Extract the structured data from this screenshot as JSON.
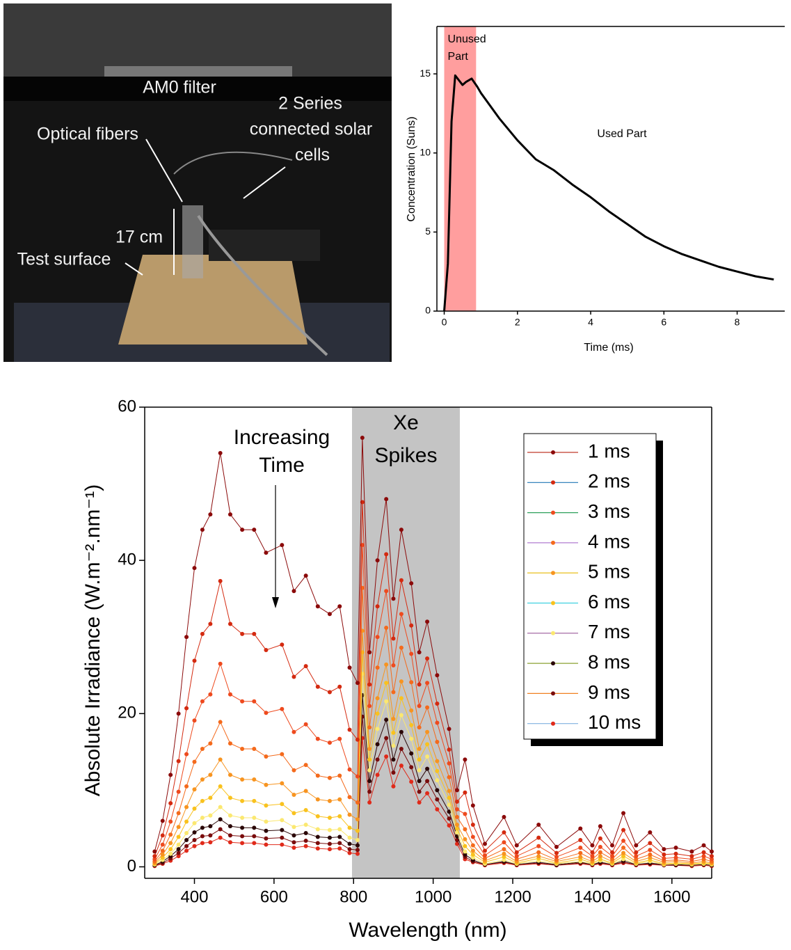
{
  "photo": {
    "labels": [
      [
        "AM0 filter"
      ],
      [
        "2 Series",
        "connected solar",
        "cells"
      ],
      [
        "Optical fibers"
      ],
      [
        "17 cm"
      ],
      [
        "Test surface"
      ]
    ]
  },
  "chart_data": [
    {
      "type": "line",
      "xlabel": "Time (ms)",
      "ylabel": "Concentration (Suns)",
      "x": [
        0,
        0.1,
        0.2,
        0.3,
        0.4,
        0.5,
        0.6,
        0.75,
        0.9,
        1,
        1.5,
        2,
        2.5,
        3,
        3.5,
        4,
        4.5,
        5,
        5.5,
        6,
        6.5,
        7,
        7.5,
        8,
        8.5,
        9
      ],
      "values": [
        0,
        3,
        12,
        14.9,
        14.6,
        14.3,
        14.5,
        14.7,
        14.2,
        13.8,
        12.2,
        10.8,
        9.6,
        8.9,
        8,
        7.2,
        6.3,
        5.5,
        4.7,
        4.1,
        3.6,
        3.2,
        2.8,
        2.5,
        2.2,
        2.0
      ],
      "color": "#000000",
      "xlim": [
        -0.2,
        9.3
      ],
      "ylim": [
        0,
        18
      ],
      "xticks": [
        0,
        2,
        4,
        6,
        8
      ],
      "yticks": [
        0,
        5,
        10,
        15
      ],
      "shaded_regions": [
        {
          "range": [
            0,
            0.87
          ],
          "color": "#ff9e9e",
          "label": [
            "Unused",
            "Part"
          ]
        }
      ],
      "annotations": [
        "Used Part"
      ]
    },
    {
      "type": "line",
      "xlabel": "Wavelength (nm)",
      "ylabel": "Absolute Irradiance (W.m⁻².nm⁻¹)",
      "x": [
        300,
        320,
        340,
        360,
        380,
        400,
        420,
        440,
        465,
        490,
        520,
        550,
        580,
        620,
        650,
        680,
        710,
        740,
        765,
        790,
        810,
        822,
        840,
        860,
        882,
        900,
        920,
        945,
        965,
        985,
        1010,
        1040,
        1060,
        1080,
        1100,
        1130,
        1178,
        1210,
        1265,
        1310,
        1370,
        1400,
        1420,
        1450,
        1478,
        1510,
        1545,
        1580,
        1610,
        1650,
        1680,
        1700
      ],
      "markers": true,
      "legend": "upper right",
      "xlim": [
        275,
        1700
      ],
      "ylim": [
        -1.5,
        60
      ],
      "xticks": [
        400,
        600,
        800,
        1000,
        1200,
        1400,
        1600
      ],
      "yticks": [
        0,
        20,
        40,
        60
      ],
      "shaded_regions": [
        {
          "range": [
            796,
            1067
          ],
          "color": "#c4c4c4",
          "label": [
            "Xe",
            "Spikes"
          ]
        }
      ],
      "annotations": [
        [
          "Increasing",
          "Time"
        ]
      ],
      "series": [
        {
          "name": "1 ms",
          "color": "#8b0a0a",
          "line_color": "#c0392b",
          "values": [
            2,
            6,
            12,
            20,
            30,
            39,
            44,
            46,
            54,
            46,
            44,
            44,
            41,
            42,
            36,
            38,
            34,
            33,
            34,
            26,
            24,
            56,
            28,
            40,
            48,
            35,
            44,
            37,
            28,
            32,
            25,
            18,
            10,
            14,
            8,
            3,
            6.5,
            2.8,
            5.5,
            2.6,
            5,
            2.8,
            5.3,
            2.8,
            7,
            2.8,
            4.5,
            2.3,
            2.5,
            2,
            2.8,
            2
          ]
        },
        {
          "name": "2 ms",
          "color": "#d42a10",
          "line_color": "#1f77b4",
          "values": [
            1.4,
            4.1,
            8.3,
            13.8,
            20.7,
            26.9,
            30.4,
            31.7,
            37.3,
            31.7,
            30.4,
            30.4,
            28.3,
            29,
            24.8,
            26.2,
            23.5,
            22.8,
            23.5,
            17.9,
            16.6,
            47.6,
            23.8,
            34,
            40.8,
            29.8,
            37.4,
            31.5,
            23.8,
            27.2,
            21.3,
            15.3,
            8.5,
            9.7,
            5.5,
            2.1,
            4.5,
            1.9,
            3.8,
            1.8,
            3.5,
            1.9,
            3.7,
            1.9,
            4.8,
            1.9,
            3.1,
            1.6,
            1.7,
            1.4,
            1.9,
            1.4
          ]
        },
        {
          "name": "3 ms",
          "color": "#ee4a1e",
          "line_color": "#2ca05a",
          "values": [
            1,
            2.9,
            5.9,
            9.8,
            14.7,
            19.1,
            21.6,
            22.5,
            26.5,
            22.5,
            21.6,
            21.6,
            20.1,
            20.6,
            17.6,
            18.6,
            16.7,
            16.2,
            16.7,
            12.7,
            11.8,
            42,
            21,
            30,
            36,
            26.3,
            33,
            27.8,
            21,
            24,
            18.8,
            13.5,
            7.5,
            6.9,
            3.9,
            1.5,
            3.2,
            1.4,
            2.7,
            1.3,
            2.5,
            1.4,
            2.6,
            1.4,
            3.4,
            1.4,
            2.2,
            1.1,
            1.2,
            1,
            1.4,
            1
          ]
        },
        {
          "name": "4 ms",
          "color": "#f46a1c",
          "line_color": "#b07cd0",
          "values": [
            0.7,
            2.1,
            4.2,
            7,
            10.5,
            13.7,
            15.4,
            16.1,
            18.9,
            16.1,
            15.4,
            15.4,
            14.4,
            14.7,
            12.6,
            13.3,
            11.9,
            11.6,
            11.9,
            9.1,
            8.4,
            36.4,
            18.2,
            26,
            31.2,
            22.8,
            28.6,
            24.1,
            18.2,
            20.8,
            16.3,
            11.7,
            6.5,
            4.9,
            2.8,
            1.1,
            2.3,
            1,
            1.9,
            0.9,
            1.8,
            1,
            1.9,
            1,
            2.5,
            1,
            1.6,
            0.8,
            0.9,
            0.7,
            1,
            0.7
          ]
        },
        {
          "name": "5 ms",
          "color": "#f79420",
          "line_color": "#e6b800",
          "values": [
            0.5,
            1.6,
            3.1,
            5.2,
            7.8,
            10.1,
            11.4,
            12,
            14,
            12,
            11.4,
            11.4,
            10.7,
            10.9,
            9.4,
            9.9,
            8.8,
            8.6,
            8.8,
            6.8,
            6.2,
            30.8,
            15.4,
            22,
            26.4,
            19.3,
            24.2,
            20.4,
            15.4,
            17.6,
            13.8,
            9.9,
            5.5,
            3.6,
            2.1,
            0.8,
            1.7,
            0.7,
            1.4,
            0.7,
            1.3,
            0.7,
            1.4,
            0.7,
            1.8,
            0.7,
            1.2,
            0.6,
            0.7,
            0.5,
            0.7,
            0.5
          ]
        },
        {
          "name": "6 ms",
          "color": "#f9c21e",
          "line_color": "#3fd0e0",
          "values": [
            0.4,
            1.2,
            2.3,
            3.9,
            5.9,
            7.6,
            8.6,
            9,
            10.5,
            9,
            8.6,
            8.6,
            8,
            8.2,
            7,
            7.4,
            6.6,
            6.4,
            6.6,
            5.1,
            4.7,
            28,
            14,
            20,
            24,
            17.5,
            22,
            18.5,
            14,
            16,
            12.5,
            9,
            5,
            2.7,
            1.6,
            0.6,
            1.3,
            0.5,
            1.1,
            0.5,
            1,
            0.5,
            1,
            0.5,
            1.4,
            0.5,
            0.9,
            0.4,
            0.5,
            0.4,
            0.5,
            0.4
          ]
        },
        {
          "name": "7 ms",
          "color": "#fbe870",
          "line_color": "#9a5a9a",
          "values": [
            0.3,
            0.9,
            1.7,
            2.9,
            4.4,
            5.7,
            6.4,
            6.7,
            7.8,
            6.7,
            6.4,
            6.4,
            5.9,
            6.1,
            5.2,
            5.5,
            4.9,
            4.8,
            4.9,
            3.8,
            3.5,
            25.2,
            12.6,
            18,
            21.6,
            15.8,
            19.8,
            16.7,
            12.6,
            14.4,
            11.3,
            8.1,
            4.5,
            2,
            1.2,
            0.4,
            0.9,
            0.4,
            0.8,
            0.4,
            0.7,
            0.4,
            0.8,
            0.4,
            1,
            0.4,
            0.7,
            0.3,
            0.4,
            0.3,
            0.4,
            0.3
          ]
        },
        {
          "name": "8 ms",
          "color": "#2a0606",
          "line_color": "#8aa030",
          "values": [
            0.2,
            0.7,
            1.4,
            2.3,
            3.5,
            4.5,
            5.1,
            5.3,
            6.2,
            5.3,
            5.1,
            5.1,
            4.7,
            4.8,
            4.1,
            4.4,
            3.9,
            3.8,
            3.9,
            3,
            2.8,
            22.4,
            11.2,
            16,
            19.2,
            14,
            17.6,
            14.8,
            11.2,
            12.8,
            10,
            7.2,
            4,
            1.6,
            0.9,
            0.3,
            0.7,
            0.3,
            0.6,
            0.3,
            0.6,
            0.3,
            0.6,
            0.3,
            0.8,
            0.3,
            0.5,
            0.3,
            0.3,
            0.2,
            0.3,
            0.2
          ]
        },
        {
          "name": "9 ms",
          "color": "#7a0c0c",
          "line_color": "#f08020",
          "values": [
            0.2,
            0.5,
            1.1,
            1.8,
            2.7,
            3.5,
            4,
            4.1,
            4.9,
            4.1,
            4,
            4,
            3.7,
            3.8,
            3.2,
            3.4,
            3.1,
            3,
            3.1,
            2.3,
            2.2,
            19.6,
            9.8,
            14,
            16.8,
            12.3,
            15.4,
            13,
            9.8,
            11.2,
            8.8,
            6.3,
            3.5,
            1.3,
            0.7,
            0.3,
            0.6,
            0.3,
            0.5,
            0.2,
            0.5,
            0.3,
            0.5,
            0.3,
            0.6,
            0.3,
            0.4,
            0.2,
            0.2,
            0.2,
            0.3,
            0.2
          ]
        },
        {
          "name": "10 ms",
          "color": "#e02a1a",
          "line_color": "#7fb0e0",
          "values": [
            0.1,
            0.4,
            0.8,
            1.4,
            2.1,
            2.7,
            3.1,
            3.2,
            3.8,
            3.2,
            3.1,
            3.1,
            2.9,
            2.9,
            2.5,
            2.7,
            2.4,
            2.3,
            2.4,
            1.8,
            1.7,
            16.8,
            8.4,
            12,
            14.4,
            10.5,
            13.2,
            11.1,
            8.4,
            9.6,
            7.5,
            5.4,
            3,
            1,
            0.6,
            0.2,
            0.5,
            0.2,
            0.4,
            0.2,
            0.4,
            0.2,
            0.4,
            0.2,
            0.5,
            0.2,
            0.3,
            0.2,
            0.2,
            0.1,
            0.2,
            0.1
          ]
        }
      ]
    }
  ]
}
